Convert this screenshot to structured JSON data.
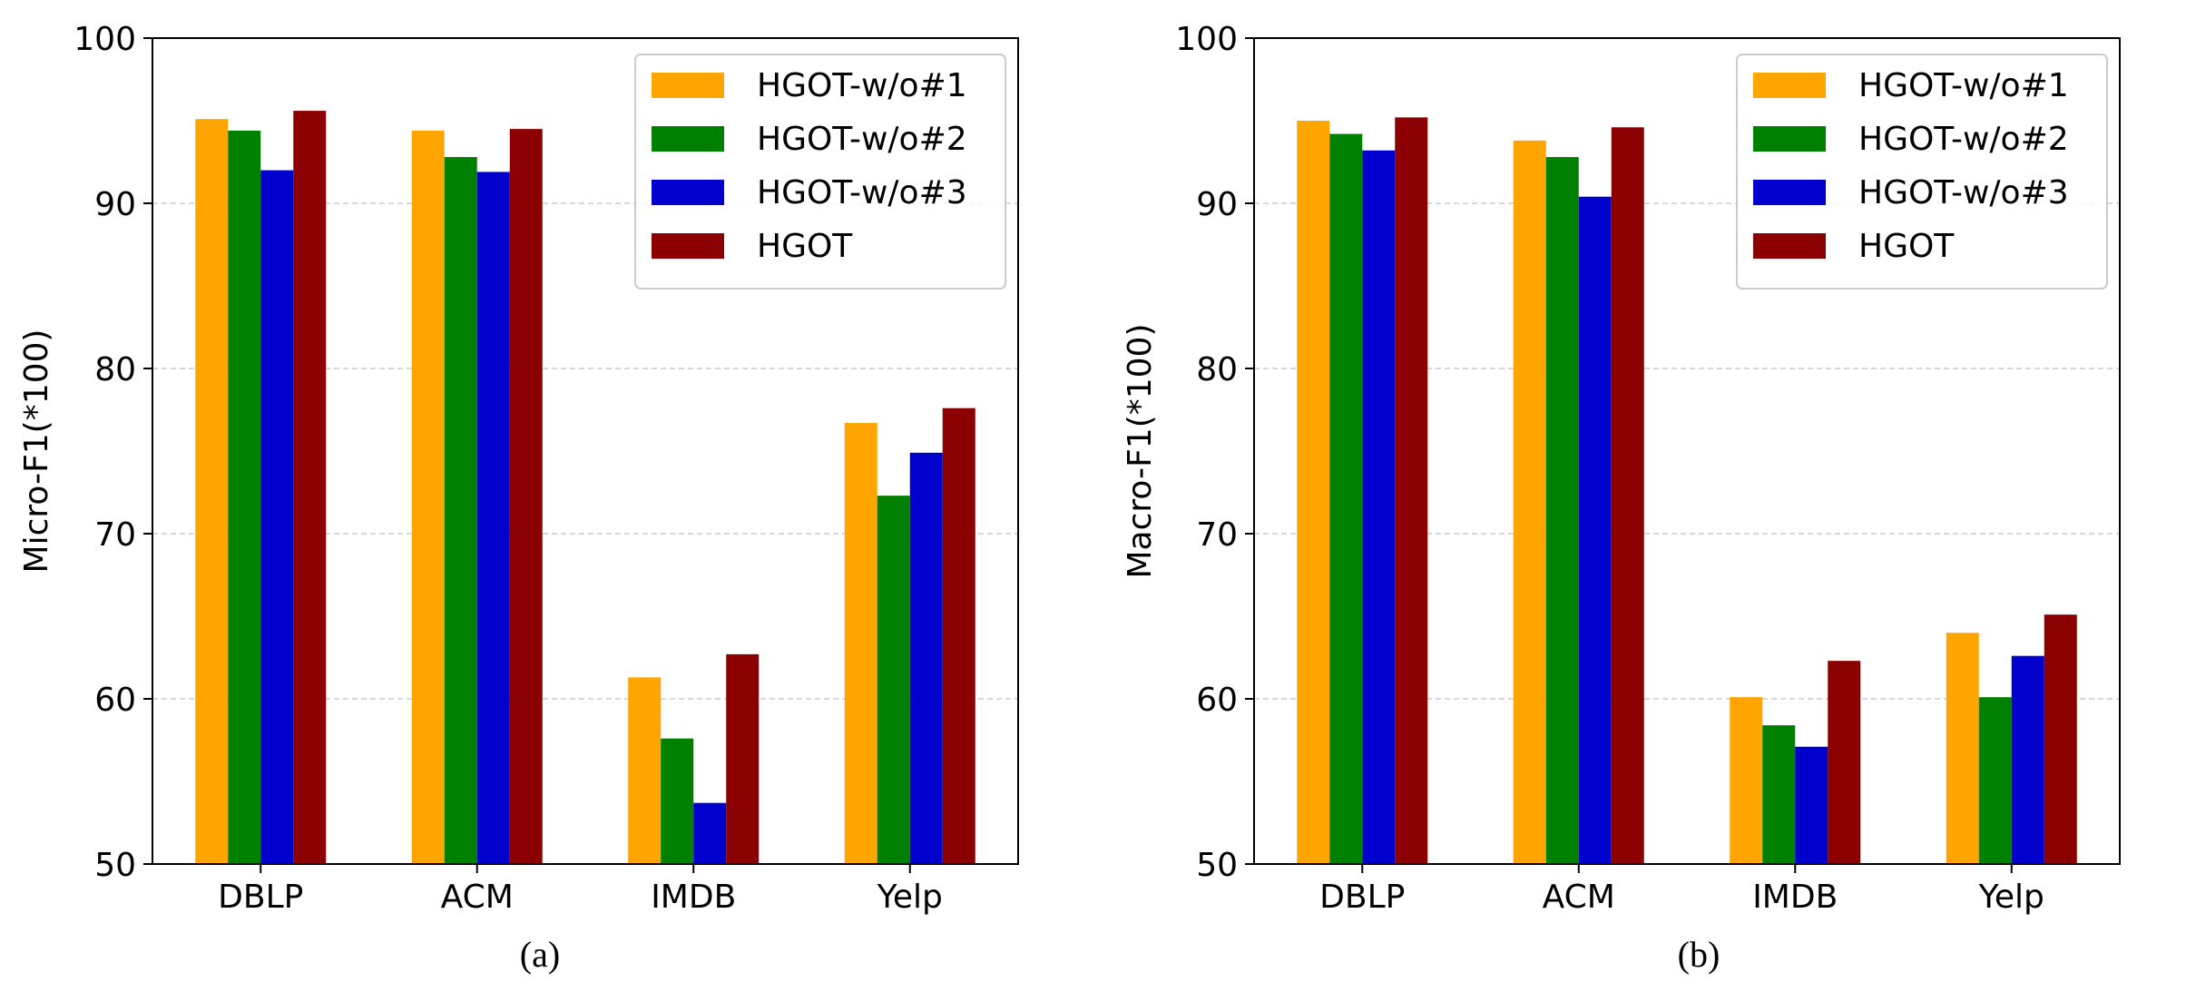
{
  "colors": {
    "HGOT-w/o#1": "#FFA500",
    "HGOT-w/o#2": "#008000",
    "HGOT-w/o#3": "#0000CD",
    "HGOT": "#8B0000",
    "grid": "#cccccc",
    "axis": "#000000"
  },
  "chart_data": [
    {
      "type": "bar",
      "caption": "(a)",
      "ylabel": "Micro-F1(*100)",
      "xlabel": "",
      "ylim": [
        50,
        100
      ],
      "yticks": [
        50,
        60,
        70,
        80,
        90,
        100
      ],
      "grid": "horizontal-dashed",
      "legend": "top-right",
      "categories": [
        "DBLP",
        "ACM",
        "IMDB",
        "Yelp"
      ],
      "series": [
        {
          "name": "HGOT-w/o#1",
          "values": [
            95.1,
            94.4,
            61.3,
            76.7
          ]
        },
        {
          "name": "HGOT-w/o#2",
          "values": [
            94.4,
            92.8,
            57.6,
            72.3
          ]
        },
        {
          "name": "HGOT-w/o#3",
          "values": [
            92.0,
            91.9,
            53.7,
            74.9
          ]
        },
        {
          "name": "HGOT",
          "values": [
            95.6,
            94.5,
            62.7,
            77.6
          ]
        }
      ]
    },
    {
      "type": "bar",
      "caption": "(b)",
      "ylabel": "Macro-F1(*100)",
      "xlabel": "",
      "ylim": [
        50,
        100
      ],
      "yticks": [
        50,
        60,
        70,
        80,
        90,
        100
      ],
      "grid": "horizontal-dashed",
      "legend": "top-right",
      "categories": [
        "DBLP",
        "ACM",
        "IMDB",
        "Yelp"
      ],
      "series": [
        {
          "name": "HGOT-w/o#1",
          "values": [
            95.0,
            93.8,
            60.1,
            64.0
          ]
        },
        {
          "name": "HGOT-w/o#2",
          "values": [
            94.2,
            92.8,
            58.4,
            60.1
          ]
        },
        {
          "name": "HGOT-w/o#3",
          "values": [
            93.2,
            90.4,
            57.1,
            62.6
          ]
        },
        {
          "name": "HGOT",
          "values": [
            95.2,
            94.6,
            62.3,
            65.1
          ]
        }
      ]
    }
  ]
}
